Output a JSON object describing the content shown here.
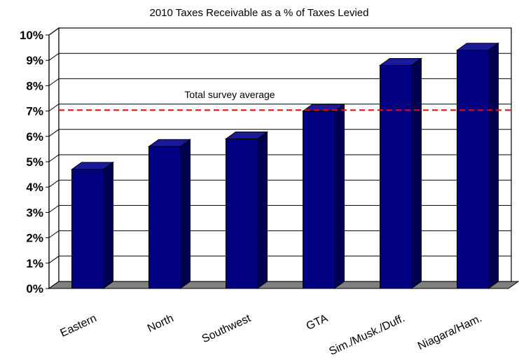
{
  "chart_data": {
    "type": "bar",
    "title": "2010 Taxes Receivable as a % of Taxes Levied",
    "categories": [
      "Eastern",
      "North",
      "Southwest",
      "GTA",
      "Sim./Musk./Duff.",
      "Niagara/Ham."
    ],
    "values": [
      4.7,
      5.6,
      5.9,
      7.0,
      8.8,
      9.4
    ],
    "ylim": [
      0,
      10
    ],
    "yticks": [
      "0%",
      "1%",
      "2%",
      "3%",
      "4%",
      "5%",
      "6%",
      "7%",
      "8%",
      "9%",
      "10%"
    ],
    "xlabel": "",
    "ylabel": "",
    "grid": true,
    "reference_line": {
      "label": "Total survey average",
      "value": 6.9,
      "color": "#ff0000"
    },
    "colors": {
      "bar_front": "#000080",
      "bar_side": "#000050",
      "bar_top": "#1a1a9a",
      "floor": "#808080"
    }
  }
}
